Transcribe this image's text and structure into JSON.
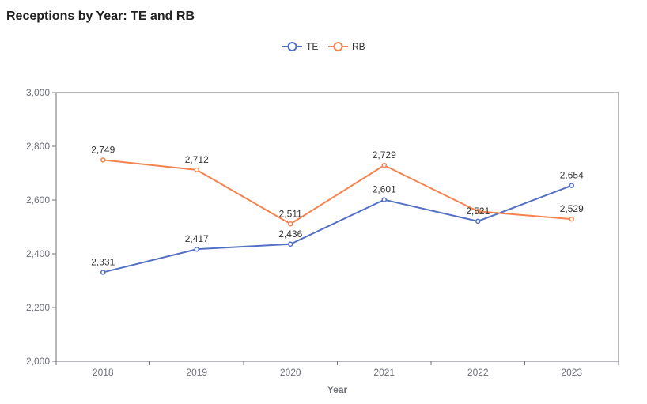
{
  "chart_data": {
    "type": "line",
    "title": "Receptions by Year: TE and RB",
    "xlabel": "Year",
    "ylabel": "",
    "categories": [
      "2018",
      "2019",
      "2020",
      "2021",
      "2022",
      "2023"
    ],
    "ylim": [
      2000,
      3000
    ],
    "yticks": [
      2000,
      2200,
      2400,
      2600,
      2800,
      3000
    ],
    "ytick_labels": [
      "2,000",
      "2,200",
      "2,400",
      "2,600",
      "2,800",
      "3,000"
    ],
    "series": [
      {
        "name": "TE",
        "color": "#5470c6",
        "values": [
          2331,
          2417,
          2436,
          2601,
          2521,
          2654
        ],
        "labels": [
          "2,331",
          "2,417",
          "2,436",
          "2,601",
          "2,521",
          "2,654"
        ]
      },
      {
        "name": "RB",
        "color": "#f4834f",
        "values": [
          2749,
          2712,
          2511,
          2729,
          2558,
          2529
        ],
        "labels": [
          "2,749",
          "2,712",
          "2,511",
          "2,729",
          "",
          "2,529"
        ]
      }
    ],
    "legend_position": "top-center",
    "grid": false
  }
}
